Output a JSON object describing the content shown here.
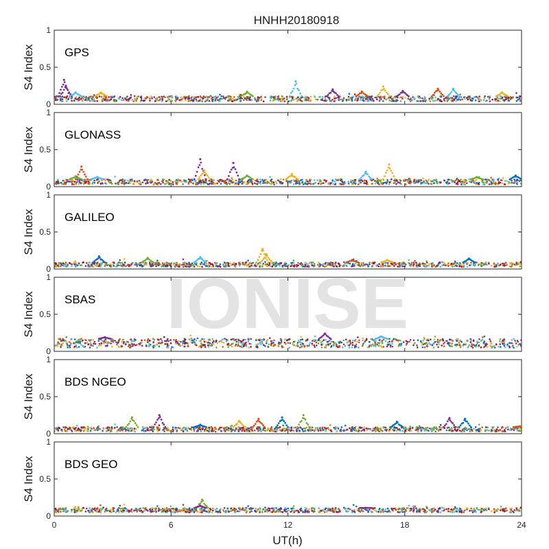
{
  "chart_data": {
    "type": "scatter",
    "title": "HNHH20180918",
    "xlabel": "UT(h)",
    "ylabel": "S4 Index",
    "xlim": [
      0,
      24
    ],
    "ylim": [
      0,
      1
    ],
    "x_ticks": [
      0,
      6,
      12,
      18,
      24
    ],
    "x_tick_labels": [
      "0",
      "6",
      "12",
      "18",
      "24"
    ],
    "y_ticks": [
      0,
      0.5,
      1
    ],
    "y_tick_labels": [
      "0",
      "0.5",
      "1"
    ],
    "grid": false,
    "watermark": "IONISE",
    "watermark_panel": 3,
    "series_colors": [
      "#0072bd",
      "#d95319",
      "#edb120",
      "#7e2f8e",
      "#77ac30",
      "#4dbeee",
      "#a2142f"
    ],
    "panels": [
      {
        "label": "GPS",
        "baseline_range": [
          0.04,
          0.11
        ],
        "peaks": [
          {
            "x": 0.5,
            "y": 0.33,
            "series": 3
          },
          {
            "x": 0.6,
            "y": 0.25,
            "series": 3
          },
          {
            "x": 1.1,
            "y": 0.16,
            "series": 5
          },
          {
            "x": 2.4,
            "y": 0.16,
            "series": 2
          },
          {
            "x": 9.9,
            "y": 0.17,
            "series": 4
          },
          {
            "x": 12.4,
            "y": 0.31,
            "series": 5
          },
          {
            "x": 14.3,
            "y": 0.2,
            "series": 3
          },
          {
            "x": 15.8,
            "y": 0.17,
            "series": 1
          },
          {
            "x": 16.9,
            "y": 0.24,
            "series": 2
          },
          {
            "x": 17.9,
            "y": 0.18,
            "series": 3
          },
          {
            "x": 19.7,
            "y": 0.21,
            "series": 1
          },
          {
            "x": 20.5,
            "y": 0.21,
            "series": 5
          },
          {
            "x": 23.0,
            "y": 0.16,
            "series": 2
          }
        ]
      },
      {
        "label": "GLONASS",
        "baseline_range": [
          0.03,
          0.1
        ],
        "peaks": [
          {
            "x": 1.1,
            "y": 0.14,
            "series": 4
          },
          {
            "x": 1.4,
            "y": 0.27,
            "series": 1
          },
          {
            "x": 2.2,
            "y": 0.13,
            "series": 5
          },
          {
            "x": 7.5,
            "y": 0.37,
            "series": 3
          },
          {
            "x": 7.7,
            "y": 0.22,
            "series": 2
          },
          {
            "x": 9.2,
            "y": 0.32,
            "series": 3
          },
          {
            "x": 9.9,
            "y": 0.15,
            "series": 4
          },
          {
            "x": 12.2,
            "y": 0.17,
            "series": 2
          },
          {
            "x": 16.0,
            "y": 0.2,
            "series": 5
          },
          {
            "x": 17.2,
            "y": 0.3,
            "series": 2
          },
          {
            "x": 21.7,
            "y": 0.13,
            "series": 4
          },
          {
            "x": 23.7,
            "y": 0.15,
            "series": 0
          }
        ]
      },
      {
        "label": "GALILEO",
        "baseline_range": [
          0.03,
          0.09
        ],
        "peaks": [
          {
            "x": 2.3,
            "y": 0.17,
            "series": 0
          },
          {
            "x": 4.8,
            "y": 0.15,
            "series": 4
          },
          {
            "x": 7.5,
            "y": 0.16,
            "series": 5
          },
          {
            "x": 10.7,
            "y": 0.27,
            "series": 2
          },
          {
            "x": 10.9,
            "y": 0.2,
            "series": 2
          },
          {
            "x": 15.3,
            "y": 0.12,
            "series": 1
          },
          {
            "x": 17.1,
            "y": 0.12,
            "series": 2
          },
          {
            "x": 21.3,
            "y": 0.14,
            "series": 0
          }
        ]
      },
      {
        "label": "SBAS",
        "baseline_range": [
          0.05,
          0.17
        ],
        "peaks": [
          {
            "x": 13.9,
            "y": 0.24,
            "series": 3
          },
          {
            "x": 16.8,
            "y": 0.2,
            "series": 5
          },
          {
            "x": 2.6,
            "y": 0.19,
            "series": 3
          }
        ]
      },
      {
        "label": "BDS NGEO",
        "baseline_range": [
          0.03,
          0.09
        ],
        "peaks": [
          {
            "x": 4.0,
            "y": 0.22,
            "series": 4
          },
          {
            "x": 5.4,
            "y": 0.25,
            "series": 3
          },
          {
            "x": 7.5,
            "y": 0.12,
            "series": 0
          },
          {
            "x": 9.5,
            "y": 0.17,
            "series": 2
          },
          {
            "x": 10.5,
            "y": 0.2,
            "series": 1
          },
          {
            "x": 11.7,
            "y": 0.22,
            "series": 0
          },
          {
            "x": 12.8,
            "y": 0.25,
            "series": 4
          },
          {
            "x": 17.6,
            "y": 0.16,
            "series": 0
          },
          {
            "x": 20.3,
            "y": 0.21,
            "series": 3
          },
          {
            "x": 21.1,
            "y": 0.2,
            "series": 0
          },
          {
            "x": 23.9,
            "y": 0.1,
            "series": 1
          }
        ]
      },
      {
        "label": "BDS GEO",
        "baseline_range": [
          0.05,
          0.11
        ],
        "peaks": [
          {
            "x": 7.6,
            "y": 0.22,
            "series": 4
          },
          {
            "x": 7.5,
            "y": 0.14,
            "series": 3
          },
          {
            "x": 16.0,
            "y": 0.11,
            "series": 3
          }
        ]
      }
    ]
  }
}
